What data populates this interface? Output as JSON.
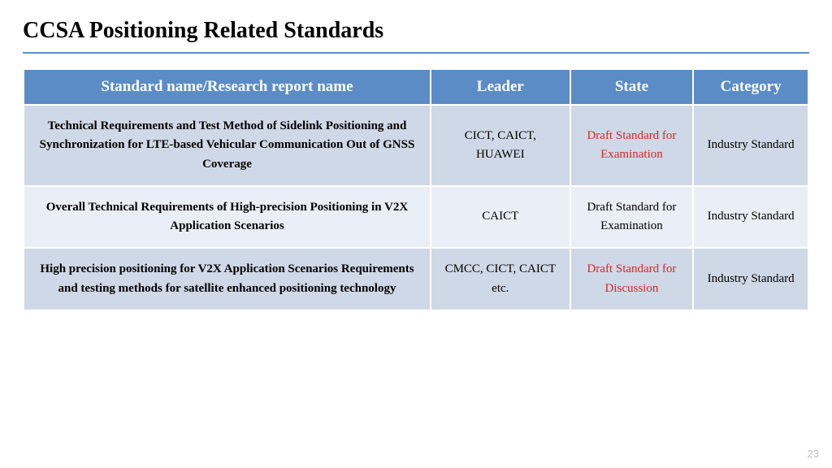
{
  "title": "CCSA Positioning Related Standards",
  "page_number": "23",
  "colors": {
    "header_bg": "#5b8cc5",
    "header_text": "#ffffff",
    "row_odd_bg": "#cfd8e6",
    "row_even_bg": "#eaeff7",
    "rule": "#5b8cc5",
    "highlight_text": "#d02a2a",
    "body_text": "#000000",
    "page_num_text": "#bdbdbd",
    "background": "#ffffff"
  },
  "columns": [
    "Standard name/Research report name",
    "Leader",
    "State",
    "Category"
  ],
  "rows": [
    {
      "name": "Technical Requirements and Test Method of Sidelink Positioning and Synchronization for LTE-based Vehicular Communication Out of GNSS Coverage",
      "leader": "CICT, CAICT, HUAWEI",
      "state": "Draft Standard for Examination",
      "state_highlight": true,
      "category": "Industry Standard"
    },
    {
      "name": "Overall Technical Requirements of High-precision Positioning in V2X Application Scenarios",
      "leader": "CAICT",
      "state": "Draft Standard for Examination",
      "state_highlight": false,
      "category": "Industry Standard"
    },
    {
      "name": "High precision positioning for V2X Application Scenarios Requirements and testing methods for satellite enhanced positioning technology",
      "leader": "CMCC, CICT, CAICT etc.",
      "state": "Draft Standard for Discussion",
      "state_highlight": true,
      "category": "Industry Standard"
    }
  ]
}
